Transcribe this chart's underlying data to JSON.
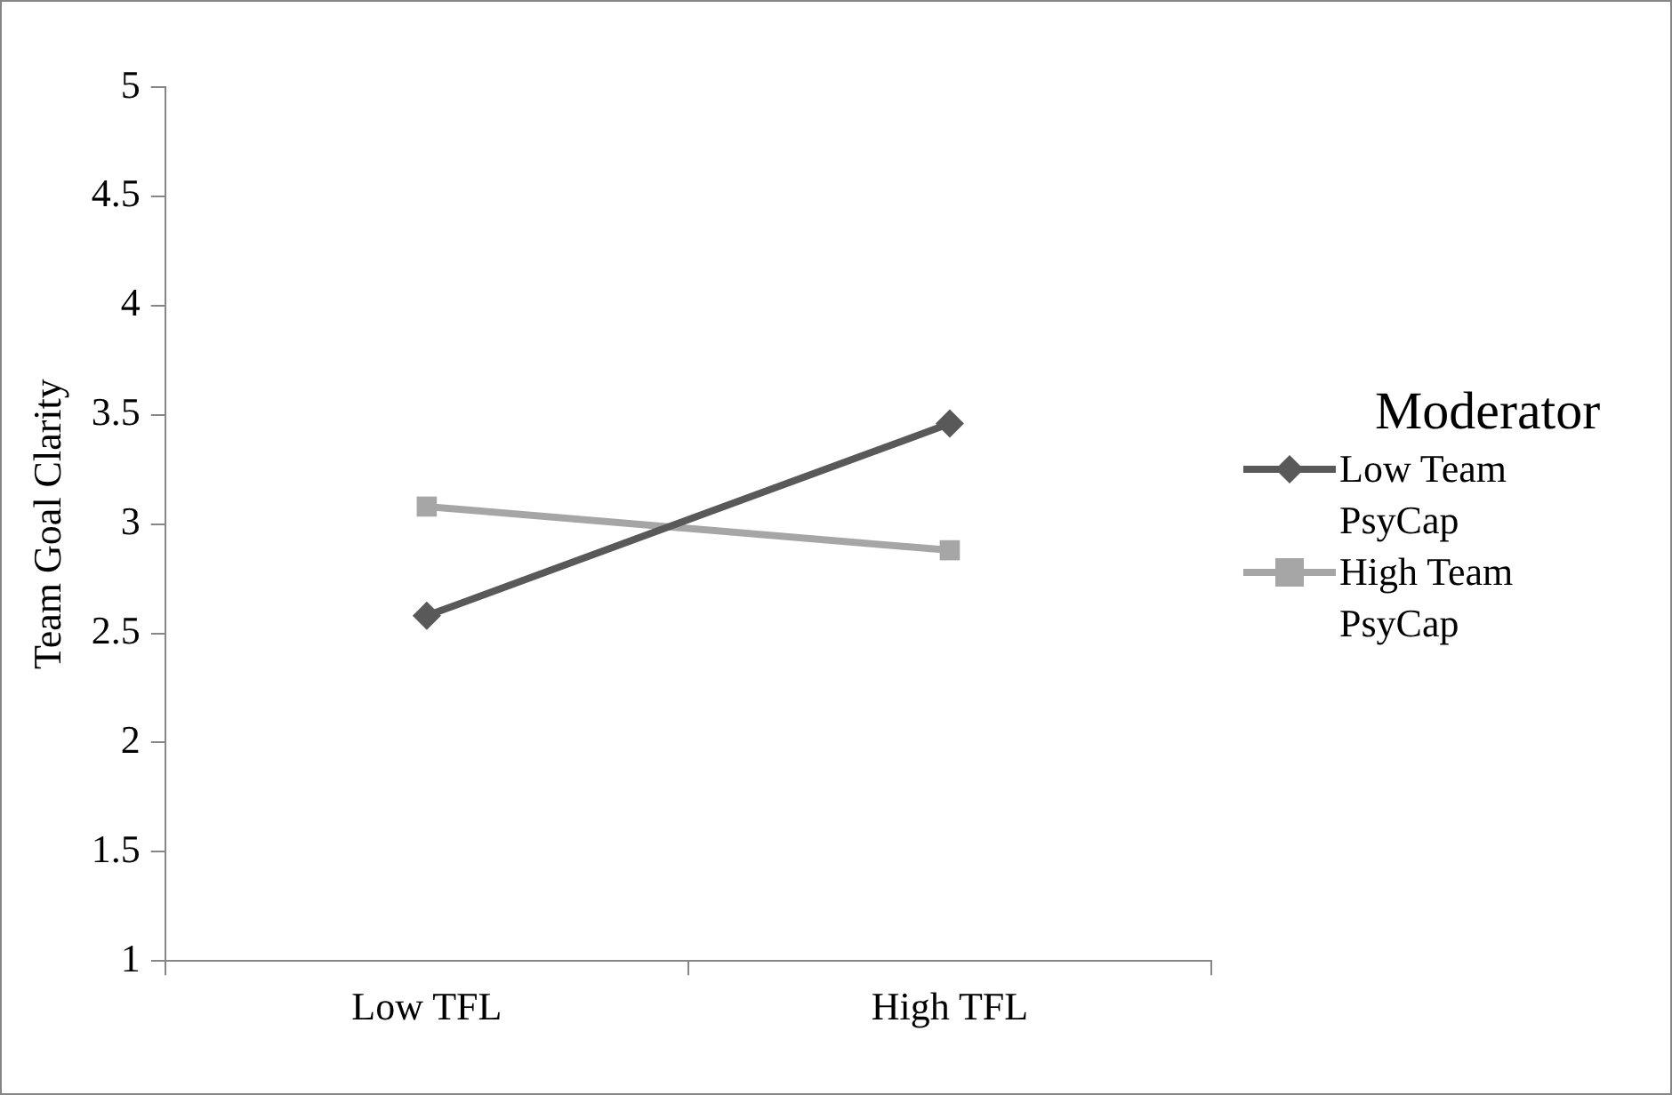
{
  "chart_data": {
    "type": "line",
    "ylabel": "Team Goal Clarity",
    "legend_title": "Moderator",
    "legend": "right",
    "grid": false,
    "categories": [
      "Low TFL",
      "High TFL"
    ],
    "ylim": [
      1,
      5
    ],
    "yticks": [
      1,
      1.5,
      2,
      2.5,
      3,
      3.5,
      4,
      4.5,
      5
    ],
    "series": [
      {
        "name": "Low Team PsyCap",
        "color": "#595959",
        "marker": "diamond",
        "values": [
          2.58,
          3.46
        ]
      },
      {
        "name": "High Team PsyCap",
        "color": "#a6a6a6",
        "marker": "square",
        "values": [
          3.08,
          2.88
        ]
      }
    ]
  }
}
